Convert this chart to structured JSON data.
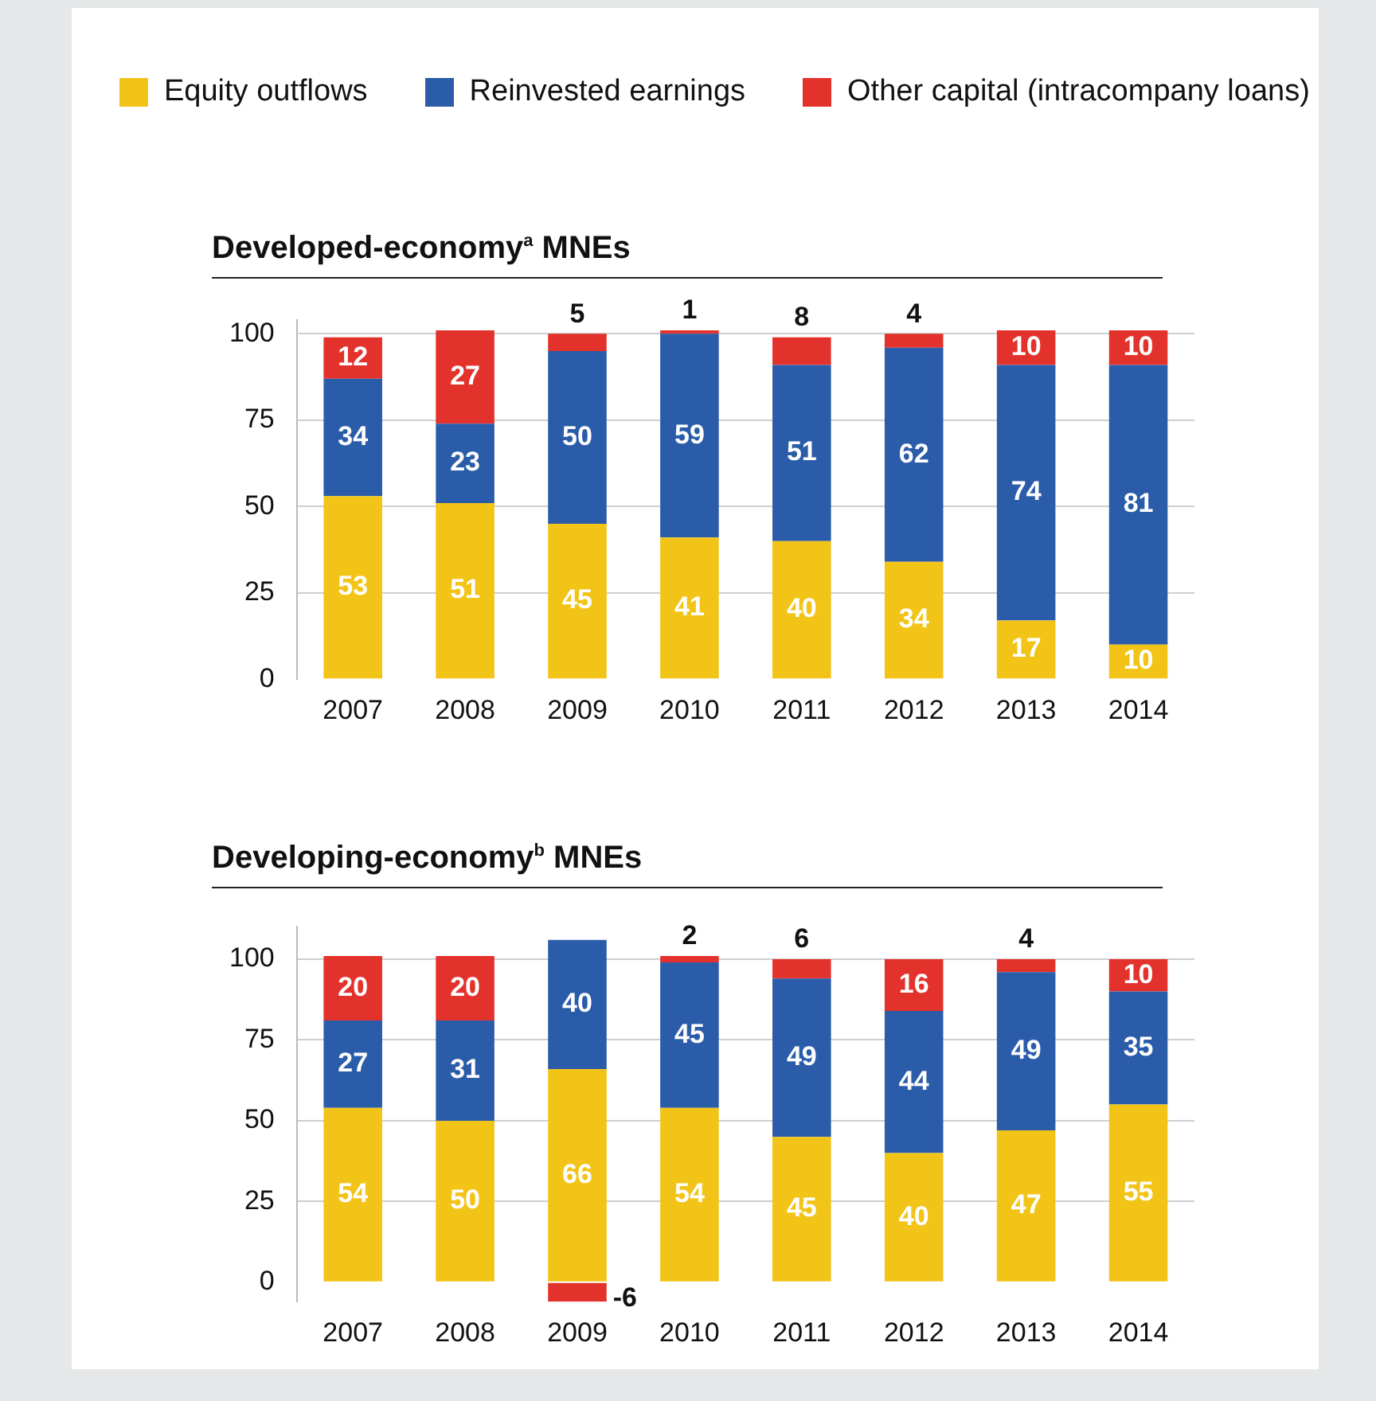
{
  "chart_data": [
    {
      "type": "bar",
      "title": "Developed-economy$^{a}$ MNEs",
      "stacked": true,
      "legend": "top",
      "grid": "y",
      "data_labels": true,
      "categories": [
        "2007",
        "2008",
        "2009",
        "2010",
        "2011",
        "2012",
        "2013",
        "2014"
      ],
      "series": [
        {
          "name": "Equity outflows",
          "color": "#f2c418",
          "values": [
            53,
            51,
            45,
            41,
            40,
            34,
            17,
            10
          ]
        },
        {
          "name": "Reinvested earnings",
          "color": "#2a5caa",
          "values": [
            34,
            23,
            50,
            59,
            51,
            62,
            74,
            81
          ]
        },
        {
          "name": "Other capital (intracompany loans)",
          "color": "#e3322b",
          "values": [
            12,
            27,
            5,
            1,
            8,
            4,
            10,
            10
          ]
        }
      ],
      "ylim": [
        0,
        104
      ],
      "yticks": [
        0,
        25,
        50,
        75,
        100
      ]
    },
    {
      "type": "bar",
      "title": "Developing-economy$^{b}$ MNEs",
      "stacked": true,
      "grid": "y",
      "data_labels": true,
      "categories": [
        "2007",
        "2008",
        "2009",
        "2010",
        "2011",
        "2012",
        "2013",
        "2014"
      ],
      "series": [
        {
          "color": "#f2c418",
          "values": [
            54,
            50,
            66,
            54,
            45,
            40,
            47,
            55
          ]
        },
        {
          "color": "#2a5caa",
          "values": [
            27,
            31,
            40,
            45,
            49,
            44,
            49,
            35
          ]
        },
        {
          "color": "#e3322b",
          "values": [
            20,
            20,
            -6,
            2,
            6,
            16,
            4,
            10
          ]
        }
      ],
      "ylim": [
        -6,
        110
      ],
      "yticks": [
        0,
        25,
        50,
        75,
        100
      ]
    }
  ]
}
